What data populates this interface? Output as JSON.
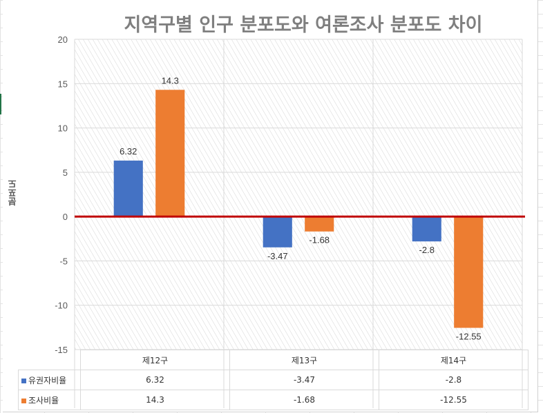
{
  "chart_data": {
    "type": "bar",
    "title": "지역구별 인구 분포도와 여론조사 분포도 차이",
    "ylabel": "분포도",
    "xlabel": "",
    "categories": [
      "제12구",
      "제13구",
      "제14구"
    ],
    "series": [
      {
        "name": "유권자비율",
        "values": [
          6.32,
          -3.47,
          -2.8
        ],
        "labels": [
          "6.32",
          "-3.47",
          "-2.8"
        ],
        "color": "#4472c4"
      },
      {
        "name": "조사비율",
        "values": [
          14.3,
          -1.68,
          -12.55
        ],
        "labels": [
          "14.3",
          "-1.68",
          "-12.55"
        ],
        "color": "#ed7d31"
      }
    ],
    "ylim": [
      -15,
      20
    ],
    "yticks": [
      -15,
      -10,
      -5,
      0,
      5,
      10,
      15,
      20
    ],
    "zero_line_color": "#c00000",
    "grid": true,
    "legend": "data-table"
  }
}
